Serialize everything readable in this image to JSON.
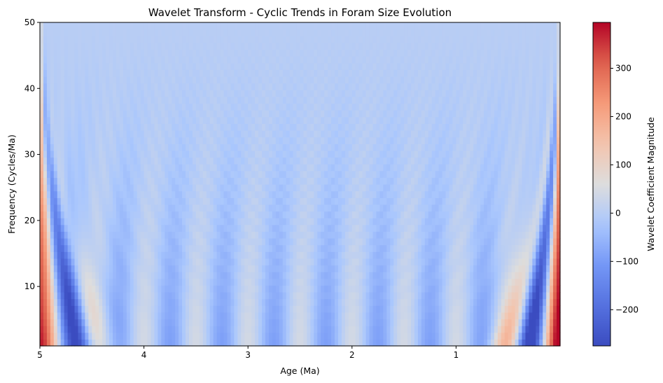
{
  "chart_data": {
    "type": "heatmap",
    "title": "Wavelet Transform - Cyclic Trends in Foram Size Evolution",
    "xlabel": "Age (Ma)",
    "ylabel": "Frequency (Cycles/Ma)",
    "colorbar_label": "Wavelet Coefficient Magnitude",
    "colormap": "coolwarm",
    "x_axis_inverted": true,
    "xlim": [
      5,
      0
    ],
    "ylim": [
      1,
      50
    ],
    "color_range": [
      -275,
      395
    ],
    "x_ticks": [
      5,
      4,
      3,
      2,
      1
    ],
    "x_tick_labels": [
      "5",
      "4",
      "3",
      "2",
      "1"
    ],
    "y_ticks": [
      10,
      20,
      30,
      40,
      50
    ],
    "y_tick_labels": [
      "10",
      "20",
      "30",
      "40",
      "50"
    ],
    "colorbar_ticks": [
      -200,
      -100,
      0,
      100,
      200,
      300
    ],
    "colorbar_tick_labels": [
      "−200",
      "−100",
      "0",
      "100",
      "200",
      "300"
    ],
    "features": {
      "edge_peak_value": 395,
      "edge_trough_value": -275,
      "background_value": 0,
      "interior_ridge_amplitude": 70,
      "ridge_spacing_ma": 0.5
    }
  }
}
